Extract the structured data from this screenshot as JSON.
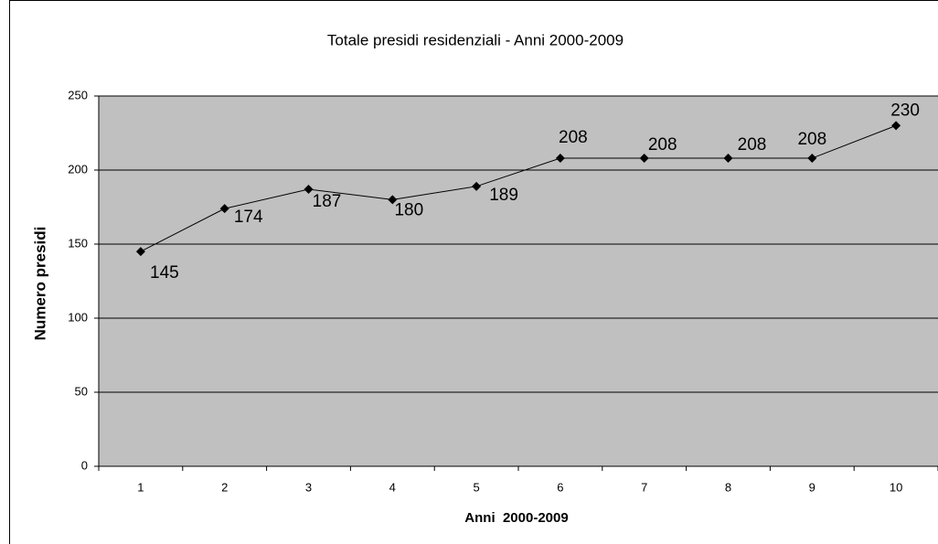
{
  "chart_data": {
    "type": "line",
    "title": "Totale presidi residenziali - Anni 2000-2009",
    "x_label": "Anni  2000-2009",
    "y_label": "Numero presidi",
    "categories": [
      "1",
      "2",
      "3",
      "4",
      "5",
      "6",
      "7",
      "8",
      "9",
      "10"
    ],
    "values": [
      145,
      174,
      187,
      180,
      189,
      208,
      208,
      208,
      208,
      230
    ],
    "color": "#000000",
    "plot_background": "#c0c0c0",
    "ylim": [
      0,
      250
    ],
    "yticks": [
      0,
      50,
      100,
      150,
      200,
      250
    ],
    "grid": true
  }
}
